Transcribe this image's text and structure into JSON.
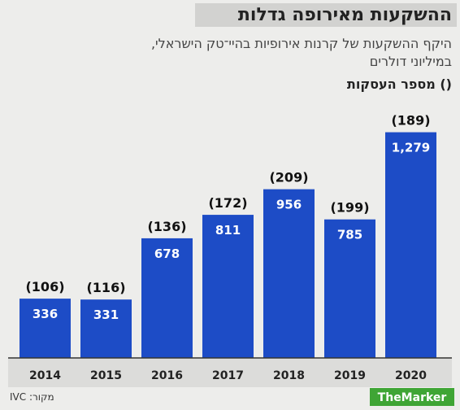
{
  "chart_data": {
    "type": "bar",
    "title": "ההשקעות מאירופה גדלות",
    "subtitle": [
      "היקף ההשקעות של קרנות אירופיות בהיי־טק הישראלי,",
      "במיליוני דולרים"
    ],
    "categories": [
      "2014",
      "2015",
      "2016",
      "2017",
      "2018",
      "2019",
      "2020"
    ],
    "values": [
      336,
      331,
      678,
      811,
      956,
      785,
      1279
    ],
    "value_labels": [
      "336",
      "331",
      "678",
      "811",
      "956",
      "785",
      "1,279"
    ],
    "color": "#1d4cc6",
    "deals": {
      "name": "() מספר העסקות",
      "values": [
        106,
        116,
        136,
        172,
        209,
        199,
        189
      ],
      "value_labels": [
        "(106)",
        "(116)",
        "(136)",
        "(172)",
        "(209)",
        "(199)",
        "(189)"
      ]
    },
    "ylim": [
      0,
      1300
    ],
    "source": "מקור: IVC",
    "logo": "TheMarker"
  }
}
